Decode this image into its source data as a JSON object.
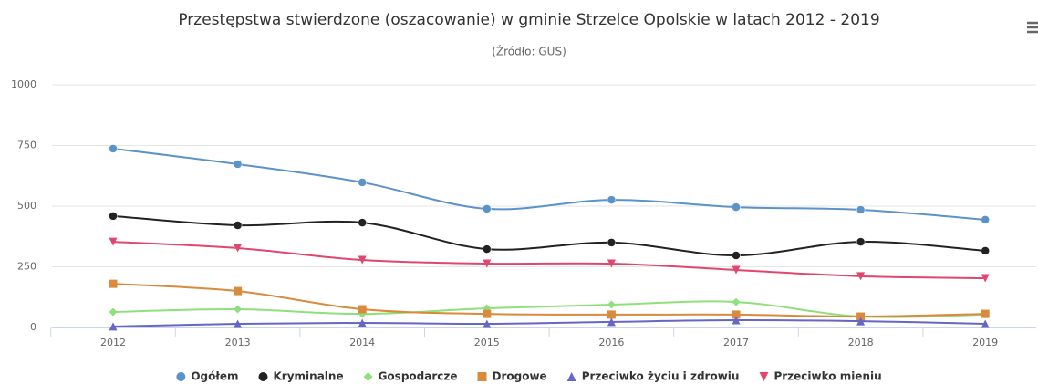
{
  "chart_data": {
    "type": "spline",
    "title": "Przestępstwa stwierdzone (oszacowanie) w gminie Strzelce Opolskie w latach 2012 - 2019",
    "subtitle": "(Źródło: GUS)",
    "categories": [
      "2012",
      "2013",
      "2014",
      "2015",
      "2016",
      "2017",
      "2018",
      "2019"
    ],
    "ylim": [
      0,
      1000
    ],
    "yticks": [
      0,
      250,
      500,
      750,
      1000
    ],
    "grid": true,
    "legend": "bottom",
    "series": [
      {
        "name": "Ogółem",
        "color": "#5b93c9",
        "symbol": "circle",
        "values": [
          737,
          673,
          598,
          489,
          526,
          496,
          485,
          444
        ]
      },
      {
        "name": "Kryminalne",
        "color": "#222222",
        "symbol": "circle",
        "values": [
          459,
          421,
          432,
          323,
          350,
          297,
          353,
          316
        ]
      },
      {
        "name": "Gospodarcze",
        "color": "#8fe07c",
        "symbol": "diamond",
        "values": [
          64,
          75,
          56,
          79,
          94,
          105,
          45,
          53
        ]
      },
      {
        "name": "Drogowe",
        "color": "#d98a3c",
        "symbol": "square",
        "values": [
          180,
          150,
          75,
          56,
          53,
          53,
          45,
          56
        ]
      },
      {
        "name": "Przeciwko życiu i zdrowiu",
        "color": "#6666c4",
        "symbol": "triangle",
        "values": [
          4,
          15,
          19,
          15,
          23,
          30,
          26,
          15
        ]
      },
      {
        "name": "Przeciwko mieniu",
        "color": "#e0466e",
        "symbol": "triangle-down",
        "values": [
          353,
          327,
          278,
          263,
          263,
          237,
          211,
          203
        ]
      }
    ]
  }
}
